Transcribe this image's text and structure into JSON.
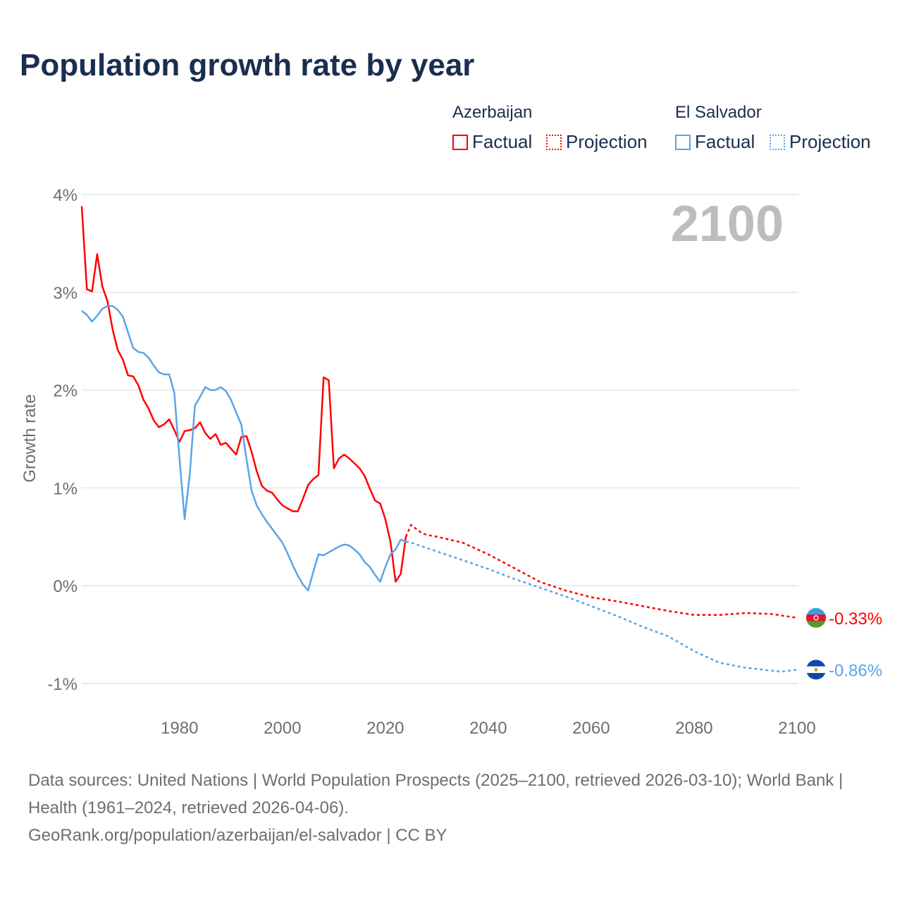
{
  "title": "Population growth rate by year",
  "legend": {
    "groups": [
      {
        "country": "Azerbaijan",
        "factual": "Factual",
        "projection": "Projection",
        "color": "#ff0000"
      },
      {
        "country": "El Salvador",
        "factual": "Factual",
        "projection": "Projection",
        "color": "#5ba4e8"
      }
    ]
  },
  "footer": {
    "sources": "Data sources: United Nations | World Population Prospects (2025–2100, retrieved 2026-03-10); World Bank | Health (1961–2024, retrieved 2026-04-06).",
    "link": "GeoRank.org/population/azerbaijan/el-salvador | CC BY"
  },
  "chart_data": {
    "type": "line",
    "title": "Population growth rate by year",
    "ylabel": "Growth rate",
    "xlabel": "",
    "xlim": [
      1961,
      2100
    ],
    "ylim": [
      -1.2,
      4.0
    ],
    "yticks": [
      {
        "v": 4,
        "label": "4%"
      },
      {
        "v": 3,
        "label": "3%"
      },
      {
        "v": 2,
        "label": "2%"
      },
      {
        "v": 1,
        "label": "1%"
      },
      {
        "v": 0,
        "label": "0%"
      },
      {
        "v": -1,
        "label": "-1%"
      }
    ],
    "xticks": [
      {
        "v": 1980,
        "label": "1980"
      },
      {
        "v": 2000,
        "label": "2000"
      },
      {
        "v": 2020,
        "label": "2020"
      },
      {
        "v": 2040,
        "label": "2040"
      },
      {
        "v": 2060,
        "label": "2060"
      },
      {
        "v": 2080,
        "label": "2080"
      },
      {
        "v": 2100,
        "label": "2100"
      }
    ],
    "year_label": "2100",
    "grid": true,
    "series": [
      {
        "name": "Azerbaijan",
        "color": "#ff0000",
        "end_label": "-0.33%",
        "factual": {
          "x": [
            1961,
            1962,
            1963,
            1964,
            1965,
            1966,
            1967,
            1968,
            1969,
            1970,
            1971,
            1972,
            1973,
            1974,
            1975,
            1976,
            1977,
            1978,
            1979,
            1980,
            1981,
            1982,
            1983,
            1984,
            1985,
            1986,
            1987,
            1988,
            1989,
            1990,
            1991,
            1992,
            1993,
            1994,
            1995,
            1996,
            1997,
            1998,
            1999,
            2000,
            2001,
            2002,
            2003,
            2004,
            2005,
            2006,
            2007,
            2008,
            2009,
            2010,
            2011,
            2012,
            2013,
            2014,
            2015,
            2016,
            2017,
            2018,
            2019,
            2020,
            2021,
            2022,
            2023,
            2024
          ],
          "y": [
            3.88,
            3.03,
            3.01,
            3.39,
            3.06,
            2.91,
            2.62,
            2.41,
            2.31,
            2.15,
            2.14,
            2.05,
            1.9,
            1.81,
            1.69,
            1.62,
            1.65,
            1.7,
            1.59,
            1.47,
            1.58,
            1.59,
            1.61,
            1.67,
            1.56,
            1.5,
            1.55,
            1.44,
            1.46,
            1.4,
            1.34,
            1.52,
            1.53,
            1.37,
            1.17,
            1.02,
            0.97,
            0.95,
            0.88,
            0.82,
            0.79,
            0.76,
            0.76,
            0.89,
            1.03,
            1.09,
            1.13,
            2.13,
            2.1,
            1.2,
            1.3,
            1.34,
            1.3,
            1.25,
            1.2,
            1.12,
            0.99,
            0.87,
            0.84,
            0.68,
            0.45,
            0.04,
            0.12,
            0.5
          ]
        },
        "projection": {
          "x": [
            2024,
            2025,
            2026,
            2027,
            2028,
            2030,
            2035,
            2040,
            2045,
            2050,
            2055,
            2060,
            2065,
            2070,
            2075,
            2080,
            2085,
            2090,
            2095,
            2100
          ],
          "y": [
            0.5,
            0.62,
            0.58,
            0.54,
            0.52,
            0.5,
            0.44,
            0.32,
            0.18,
            0.04,
            -0.05,
            -0.12,
            -0.16,
            -0.21,
            -0.26,
            -0.3,
            -0.3,
            -0.28,
            -0.29,
            -0.33
          ]
        }
      },
      {
        "name": "El Salvador",
        "color": "#5ba4e8",
        "end_label": "-0.86%",
        "factual": {
          "x": [
            1961,
            1962,
            1963,
            1964,
            1965,
            1966,
            1967,
            1968,
            1969,
            1970,
            1971,
            1972,
            1973,
            1974,
            1975,
            1976,
            1977,
            1978,
            1979,
            1980,
            1981,
            1982,
            1983,
            1984,
            1985,
            1986,
            1987,
            1988,
            1989,
            1990,
            1991,
            1992,
            1993,
            1994,
            1995,
            1996,
            1997,
            1998,
            1999,
            2000,
            2001,
            2002,
            2003,
            2004,
            2005,
            2006,
            2007,
            2008,
            2009,
            2010,
            2011,
            2012,
            2013,
            2014,
            2015,
            2016,
            2017,
            2018,
            2019,
            2020,
            2021,
            2022,
            2023,
            2024
          ],
          "y": [
            2.81,
            2.77,
            2.7,
            2.76,
            2.83,
            2.86,
            2.86,
            2.82,
            2.75,
            2.59,
            2.43,
            2.39,
            2.38,
            2.33,
            2.25,
            2.18,
            2.16,
            2.16,
            1.97,
            1.3,
            0.68,
            1.14,
            1.84,
            1.93,
            2.03,
            2.0,
            2.0,
            2.03,
            1.99,
            1.9,
            1.77,
            1.65,
            1.3,
            0.97,
            0.82,
            0.73,
            0.65,
            0.58,
            0.51,
            0.44,
            0.33,
            0.21,
            0.1,
            0.01,
            -0.05,
            0.14,
            0.32,
            0.31,
            0.34,
            0.37,
            0.4,
            0.42,
            0.41,
            0.37,
            0.32,
            0.24,
            0.19,
            0.11,
            0.04,
            0.19,
            0.32,
            0.37,
            0.47,
            0.45
          ]
        },
        "projection": {
          "x": [
            2024,
            2025,
            2030,
            2035,
            2040,
            2045,
            2050,
            2055,
            2060,
            2065,
            2070,
            2075,
            2080,
            2085,
            2090,
            2095,
            2097,
            2100
          ],
          "y": [
            0.45,
            0.44,
            0.35,
            0.26,
            0.17,
            0.07,
            -0.02,
            -0.11,
            -0.21,
            -0.31,
            -0.42,
            -0.52,
            -0.67,
            -0.79,
            -0.84,
            -0.87,
            -0.88,
            -0.86
          ]
        }
      }
    ]
  }
}
